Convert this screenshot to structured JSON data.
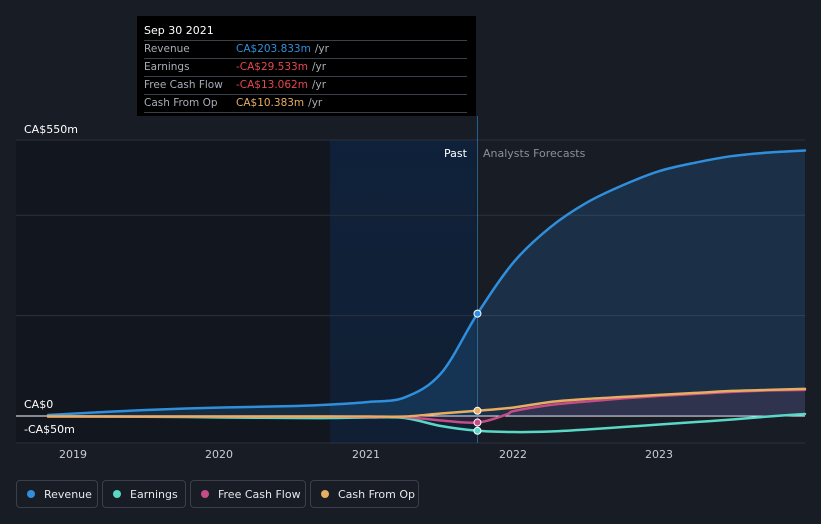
{
  "tooltip": {
    "date": "Sep 30 2021",
    "rows": [
      {
        "label": "Revenue",
        "value": "CA$203.833m",
        "unit": "/yr",
        "color": "#2f8fdd"
      },
      {
        "label": "Earnings",
        "value": "-CA$29.533m",
        "unit": "/yr",
        "color": "#e5484d"
      },
      {
        "label": "Free Cash Flow",
        "value": "-CA$13.062m",
        "unit": "/yr",
        "color": "#e5484d"
      },
      {
        "label": "Cash From Op",
        "value": "CA$10.383m",
        "unit": "/yr",
        "color": "#e8ad62"
      }
    ]
  },
  "period_labels": {
    "past": "Past",
    "forecast": "Analysts Forecasts"
  },
  "legend": [
    {
      "label": "Revenue",
      "color": "#2f8fdd"
    },
    {
      "label": "Earnings",
      "color": "#5ad8c6"
    },
    {
      "label": "Free Cash Flow",
      "color": "#c54d86"
    },
    {
      "label": "Cash From Op",
      "color": "#e8ad62"
    }
  ],
  "chart_data": {
    "type": "line",
    "title": "",
    "xlabel": "",
    "ylabel": "",
    "x_ticks": [
      "2019",
      "2020",
      "2021",
      "2022",
      "2023"
    ],
    "y_ticks": [
      "CA$550m",
      "CA$0",
      "-CA$50m"
    ],
    "ylim": [
      -50,
      550
    ],
    "xlim": [
      2018.8,
      2024.0
    ],
    "past_end": 2021.75,
    "series": [
      {
        "name": "Revenue",
        "color": "#2f8fdd",
        "points": [
          [
            2018.8,
            2
          ],
          [
            2019.25,
            9
          ],
          [
            2019.75,
            15
          ],
          [
            2020.0,
            17
          ],
          [
            2020.5,
            20
          ],
          [
            2020.75,
            23
          ],
          [
            2021.0,
            28
          ],
          [
            2021.25,
            37
          ],
          [
            2021.5,
            85
          ],
          [
            2021.75,
            204
          ],
          [
            2022.0,
            307
          ],
          [
            2022.25,
            376
          ],
          [
            2022.5,
            425
          ],
          [
            2022.75,
            460
          ],
          [
            2023.0,
            488
          ],
          [
            2023.25,
            505
          ],
          [
            2023.5,
            518
          ],
          [
            2023.75,
            525
          ],
          [
            2024.0,
            529
          ]
        ]
      },
      {
        "name": "Earnings",
        "color": "#5ad8c6",
        "points": [
          [
            2018.8,
            0
          ],
          [
            2019.25,
            -1
          ],
          [
            2019.75,
            -2
          ],
          [
            2020.0,
            -3
          ],
          [
            2020.5,
            -4
          ],
          [
            2020.75,
            -4
          ],
          [
            2021.0,
            -3
          ],
          [
            2021.25,
            -4
          ],
          [
            2021.5,
            -20
          ],
          [
            2021.75,
            -29.5
          ],
          [
            2022.0,
            -32
          ],
          [
            2022.25,
            -31
          ],
          [
            2022.5,
            -27
          ],
          [
            2022.75,
            -22
          ],
          [
            2023.0,
            -17
          ],
          [
            2023.25,
            -12
          ],
          [
            2023.5,
            -7
          ],
          [
            2023.75,
            -1
          ],
          [
            2024.0,
            4
          ]
        ]
      },
      {
        "name": "Free Cash Flow",
        "color": "#c54d86",
        "points": [
          [
            2018.8,
            -1
          ],
          [
            2019.25,
            -1
          ],
          [
            2019.75,
            -1
          ],
          [
            2020.0,
            -1
          ],
          [
            2020.5,
            -1
          ],
          [
            2020.75,
            -1
          ],
          [
            2021.0,
            -2
          ],
          [
            2021.25,
            -2
          ],
          [
            2021.5,
            -9
          ],
          [
            2021.75,
            -13
          ],
          [
            2021.95,
            3
          ],
          [
            2022.0,
            10
          ],
          [
            2022.25,
            22
          ],
          [
            2022.5,
            29
          ],
          [
            2022.75,
            35
          ],
          [
            2023.0,
            40
          ],
          [
            2023.25,
            44
          ],
          [
            2023.5,
            48
          ],
          [
            2023.75,
            51
          ],
          [
            2024.0,
            52
          ]
        ]
      },
      {
        "name": "Cash From Op",
        "color": "#e8ad62",
        "points": [
          [
            2018.8,
            -1
          ],
          [
            2019.25,
            -1
          ],
          [
            2019.75,
            -1
          ],
          [
            2020.0,
            -1
          ],
          [
            2020.5,
            -1
          ],
          [
            2020.75,
            -1
          ],
          [
            2021.0,
            -1
          ],
          [
            2021.25,
            -1
          ],
          [
            2021.5,
            5
          ],
          [
            2021.75,
            10.4
          ],
          [
            2022.0,
            17
          ],
          [
            2022.25,
            28
          ],
          [
            2022.5,
            34
          ],
          [
            2022.75,
            38
          ],
          [
            2023.0,
            42
          ],
          [
            2023.25,
            46
          ],
          [
            2023.5,
            50
          ],
          [
            2023.75,
            52
          ],
          [
            2024.0,
            54
          ]
        ]
      }
    ],
    "markers_at": 2021.75,
    "grid": true,
    "legend_position": "bottom"
  }
}
